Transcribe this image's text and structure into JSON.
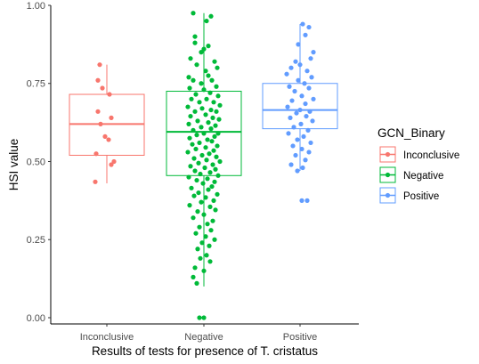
{
  "chart_data": {
    "type": "box-jitter",
    "xlabel": "Results of tests for presence of T. cristatus",
    "ylabel": "HSI value",
    "ylim": [
      -0.02,
      1.0
    ],
    "yticks": [
      0.0,
      0.25,
      0.5,
      0.75,
      1.0
    ],
    "ytick_labels": [
      "0.00",
      "0.25",
      "0.50",
      "0.75",
      "1.00"
    ],
    "categories": [
      "Inconclusive",
      "Negative",
      "Positive"
    ],
    "grid": false,
    "legend": {
      "title": "GCN_Binary",
      "placement": "right",
      "entries": [
        "Inconclusive",
        "Negative",
        "Positive"
      ]
    },
    "series": [
      {
        "name": "Inconclusive",
        "color": "#f8766d",
        "box": {
          "whisker_low": 0.43,
          "q1": 0.52,
          "median": 0.62,
          "q3": 0.715,
          "whisker_high": 0.81
        },
        "points": [
          [
            -0.08,
            0.81
          ],
          [
            -0.1,
            0.76
          ],
          [
            0.03,
            0.715
          ],
          [
            -0.05,
            0.735
          ],
          [
            -0.1,
            0.66
          ],
          [
            0.05,
            0.64
          ],
          [
            -0.07,
            0.62
          ],
          [
            -0.02,
            0.58
          ],
          [
            0.02,
            0.57
          ],
          [
            -0.12,
            0.525
          ],
          [
            0.08,
            0.5
          ],
          [
            0.05,
            0.49
          ],
          [
            -0.13,
            0.435
          ]
        ]
      },
      {
        "name": "Negative",
        "color": "#00ba38",
        "box": {
          "whisker_low": 0.1,
          "q1": 0.455,
          "median": 0.595,
          "q3": 0.725,
          "whisker_high": 0.975
        },
        "points": [
          [
            -0.12,
            0.975
          ],
          [
            0.08,
            0.965
          ],
          [
            0.03,
            0.95
          ],
          [
            -0.1,
            0.9
          ],
          [
            -0.1,
            0.88
          ],
          [
            0.0,
            0.86
          ],
          [
            -0.03,
            0.85
          ],
          [
            0.05,
            0.87
          ],
          [
            -0.15,
            0.83
          ],
          [
            0.12,
            0.82
          ],
          [
            0.15,
            0.8
          ],
          [
            -0.08,
            0.81
          ],
          [
            0.02,
            0.79
          ],
          [
            -0.17,
            0.77
          ],
          [
            0.05,
            0.775
          ],
          [
            0.09,
            0.76
          ],
          [
            -0.12,
            0.76
          ],
          [
            -0.03,
            0.75
          ],
          [
            0.14,
            0.74
          ],
          [
            -0.16,
            0.735
          ],
          [
            0.0,
            0.73
          ],
          [
            0.07,
            0.72
          ],
          [
            -0.09,
            0.715
          ],
          [
            0.16,
            0.71
          ],
          [
            -0.14,
            0.7
          ],
          [
            0.03,
            0.7
          ],
          [
            0.11,
            0.69
          ],
          [
            -0.05,
            0.69
          ],
          [
            0.18,
            0.68
          ],
          [
            -0.18,
            0.675
          ],
          [
            -0.02,
            0.67
          ],
          [
            0.08,
            0.665
          ],
          [
            0.14,
            0.66
          ],
          [
            -0.1,
            0.66
          ],
          [
            0.02,
            0.65
          ],
          [
            -0.15,
            0.645
          ],
          [
            0.1,
            0.64
          ],
          [
            0.17,
            0.635
          ],
          [
            -0.07,
            0.63
          ],
          [
            0.05,
            0.625
          ],
          [
            -0.17,
            0.62
          ],
          [
            0.13,
            0.615
          ],
          [
            -0.03,
            0.61
          ],
          [
            0.08,
            0.605
          ],
          [
            -0.12,
            0.6
          ],
          [
            0.16,
            0.59
          ],
          [
            0.0,
            0.59
          ],
          [
            -0.08,
            0.585
          ],
          [
            0.12,
            0.58
          ],
          [
            -0.16,
            0.575
          ],
          [
            0.04,
            0.57
          ],
          [
            0.09,
            0.565
          ],
          [
            -0.05,
            0.56
          ],
          [
            -0.13,
            0.555
          ],
          [
            0.15,
            0.55
          ],
          [
            0.02,
            0.545
          ],
          [
            -0.09,
            0.54
          ],
          [
            0.11,
            0.535
          ],
          [
            -0.18,
            0.53
          ],
          [
            0.06,
            0.525
          ],
          [
            -0.02,
            0.52
          ],
          [
            0.14,
            0.515
          ],
          [
            -0.11,
            0.51
          ],
          [
            0.03,
            0.505
          ],
          [
            0.18,
            0.5
          ],
          [
            -0.06,
            0.495
          ],
          [
            0.1,
            0.49
          ],
          [
            -0.15,
            0.485
          ],
          [
            0.01,
            0.48
          ],
          [
            0.13,
            0.475
          ],
          [
            -0.1,
            0.47
          ],
          [
            0.07,
            0.465
          ],
          [
            -0.04,
            0.46
          ],
          [
            0.16,
            0.455
          ],
          [
            -0.17,
            0.45
          ],
          [
            0.04,
            0.445
          ],
          [
            -0.08,
            0.44
          ],
          [
            0.12,
            0.435
          ],
          [
            -0.01,
            0.43
          ],
          [
            0.09,
            0.42
          ],
          [
            -0.14,
            0.415
          ],
          [
            0.05,
            0.41
          ],
          [
            -0.06,
            0.4
          ],
          [
            0.15,
            0.395
          ],
          [
            -0.11,
            0.39
          ],
          [
            0.02,
            0.385
          ],
          [
            0.11,
            0.375
          ],
          [
            -0.03,
            0.37
          ],
          [
            -0.16,
            0.36
          ],
          [
            0.07,
            0.355
          ],
          [
            0.13,
            0.345
          ],
          [
            -0.07,
            0.34
          ],
          [
            0.0,
            0.33
          ],
          [
            -0.12,
            0.32
          ],
          [
            0.1,
            0.31
          ],
          [
            0.04,
            0.3
          ],
          [
            -0.05,
            0.29
          ],
          [
            0.08,
            0.28
          ],
          [
            -0.09,
            0.27
          ],
          [
            0.02,
            0.26
          ],
          [
            0.12,
            0.25
          ],
          [
            -0.02,
            0.24
          ],
          [
            0.06,
            0.23
          ],
          [
            -0.07,
            0.22
          ],
          [
            0.03,
            0.2
          ],
          [
            -0.04,
            0.19
          ],
          [
            0.07,
            0.18
          ],
          [
            -0.1,
            0.16
          ],
          [
            0.0,
            0.15
          ],
          [
            -0.12,
            0.13
          ],
          [
            -0.08,
            0.11
          ],
          [
            -0.05,
            0.0
          ],
          [
            0.0,
            0.0
          ]
        ]
      },
      {
        "name": "Positive",
        "color": "#619cff",
        "box": {
          "whisker_low": 0.47,
          "q1": 0.605,
          "median": 0.665,
          "q3": 0.75,
          "whisker_high": 0.94
        },
        "points": [
          [
            0.03,
            0.94
          ],
          [
            0.1,
            0.93
          ],
          [
            0.06,
            0.905
          ],
          [
            -0.02,
            0.875
          ],
          [
            0.15,
            0.85
          ],
          [
            0.12,
            0.83
          ],
          [
            -0.05,
            0.82
          ],
          [
            0.0,
            0.81
          ],
          [
            -0.1,
            0.8
          ],
          [
            0.08,
            0.79
          ],
          [
            -0.15,
            0.78
          ],
          [
            0.13,
            0.77
          ],
          [
            -0.02,
            0.76
          ],
          [
            0.05,
            0.75
          ],
          [
            -0.12,
            0.74
          ],
          [
            0.1,
            0.735
          ],
          [
            -0.06,
            0.725
          ],
          [
            0.02,
            0.71
          ],
          [
            0.15,
            0.7
          ],
          [
            -0.09,
            0.695
          ],
          [
            0.06,
            0.685
          ],
          [
            -0.14,
            0.675
          ],
          [
            0.0,
            0.665
          ],
          [
            0.11,
            0.66
          ],
          [
            -0.04,
            0.655
          ],
          [
            0.07,
            0.645
          ],
          [
            -0.11,
            0.64
          ],
          [
            0.14,
            0.63
          ],
          [
            0.01,
            0.62
          ],
          [
            -0.07,
            0.61
          ],
          [
            0.09,
            0.6
          ],
          [
            -0.13,
            0.59
          ],
          [
            0.04,
            0.58
          ],
          [
            -0.03,
            0.57
          ],
          [
            0.12,
            0.56
          ],
          [
            -0.08,
            0.55
          ],
          [
            0.02,
            0.54
          ],
          [
            0.1,
            0.53
          ],
          [
            -0.05,
            0.52
          ],
          [
            0.06,
            0.505
          ],
          [
            -0.1,
            0.49
          ],
          [
            0.03,
            0.48
          ],
          [
            -0.03,
            0.47
          ],
          [
            0.08,
            0.375
          ],
          [
            0.02,
            0.375
          ]
        ]
      }
    ]
  }
}
